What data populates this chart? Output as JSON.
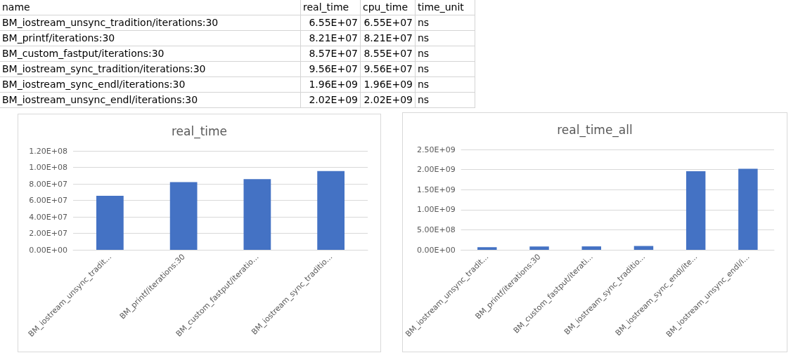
{
  "chart_data": [
    {
      "type": "other",
      "annotations": [
        "name",
        "real_time",
        "cpu_time",
        "time_unit",
        "BM_iostream_unsync_tradition/iterations:30",
        "6.55E+07",
        "6.55E+07",
        "ns",
        "BM_printf/iterations:30",
        "8.21E+07",
        "8.21E+07",
        "ns",
        "BM_custom_fastput/iterations:30",
        "8.57E+07",
        "8.55E+07",
        "ns",
        "BM_iostream_sync_tradition/iterations:30",
        "9.56E+07",
        "9.56E+07",
        "ns",
        "BM_iostream_sync_endl/iterations:30",
        "1.96E+09",
        "1.96E+09",
        "ns",
        "BM_iostream_unsync_endl/iterations:30",
        "2.02E+09",
        "2.02E+09",
        "ns"
      ]
    },
    {
      "type": "bar",
      "title": "real_time",
      "categories": [
        "BM_iostream_unsync_tradit...",
        "BM_printf/iterations:30",
        "BM_custom_fastput/iteratio...",
        "BM_iostream_sync_traditio..."
      ],
      "values": [
        65500000,
        82100000,
        85700000,
        95600000
      ],
      "color": "#4472c4",
      "ylim": [
        0,
        120000000
      ],
      "yticks": [
        {
          "value": 0,
          "label": "0.00E+00"
        },
        {
          "value": 20000000,
          "label": "2.00E+07"
        },
        {
          "value": 40000000,
          "label": "4.00E+07"
        },
        {
          "value": 60000000,
          "label": "6.00E+07"
        },
        {
          "value": 80000000,
          "label": "8.00E+07"
        },
        {
          "value": 100000000,
          "label": "1.00E+08"
        },
        {
          "value": 120000000,
          "label": "1.20E+08"
        }
      ],
      "grid": "y"
    },
    {
      "type": "bar",
      "title": "real_time_all",
      "categories": [
        "BM_iostream_unsync_tradit...",
        "BM_printf/iterations:30",
        "BM_custom_fastput/iterati...",
        "BM_iostream_sync_traditio...",
        "BM_iostream_sync_endl/ite...",
        "BM_iostream_unsync_endl/i..."
      ],
      "values": [
        65500000,
        82100000,
        85700000,
        95600000,
        1960000000,
        2020000000
      ],
      "color": "#4472c4",
      "ylim": [
        0,
        2500000000
      ],
      "yticks": [
        {
          "value": 0,
          "label": "0.00E+00"
        },
        {
          "value": 500000000,
          "label": "5.00E+08"
        },
        {
          "value": 1000000000,
          "label": "1.00E+09"
        },
        {
          "value": 1500000000,
          "label": "1.50E+09"
        },
        {
          "value": 2000000000,
          "label": "2.00E+09"
        },
        {
          "value": 2500000000,
          "label": "2.50E+09"
        }
      ],
      "grid": "y"
    }
  ]
}
